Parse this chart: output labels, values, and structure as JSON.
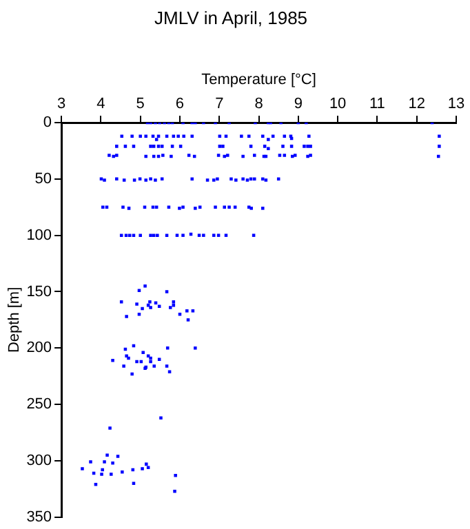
{
  "chart_data": {
    "type": "scatter",
    "title": "JMLV in April, 1985",
    "xlabel": "Temperature [°C]",
    "ylabel": "Depth [m]",
    "xlim": [
      3,
      13
    ],
    "xticks": [
      3,
      4,
      5,
      6,
      7,
      8,
      9,
      10,
      11,
      12,
      13
    ],
    "ylim": [
      350,
      0
    ],
    "yticks": [
      0,
      50,
      100,
      150,
      200,
      250,
      300,
      350
    ],
    "grid": false,
    "legend": false,
    "marker": "square",
    "series": [
      {
        "color": "#0000ff",
        "x": [
          5.18,
          5.26,
          5.38,
          5.49,
          5.61,
          5.72,
          5.81,
          6.08,
          6.31,
          6.39,
          6.6,
          6.9,
          7.25,
          7.91,
          8.24,
          8.3,
          8.56,
          9.0,
          9.2,
          12.39,
          4.53,
          4.79,
          5.0,
          5.14,
          5.32,
          5.41,
          5.46,
          5.67,
          5.84,
          5.96,
          6.1,
          6.31,
          7.01,
          7.17,
          7.56,
          7.75,
          8.1,
          8.24,
          8.36,
          8.65,
          8.81,
          8.83,
          9.27,
          12.57,
          4.4,
          4.62,
          4.83,
          5.26,
          5.34,
          5.46,
          5.55,
          5.81,
          6.02,
          7.01,
          7.09,
          7.8,
          8.15,
          8.24,
          8.61,
          8.83,
          9.15,
          9.24,
          9.31,
          12.57,
          4.21,
          4.32,
          4.4,
          5.14,
          5.34,
          5.46,
          5.57,
          5.78,
          6.23,
          6.37,
          6.98,
          7.13,
          7.21,
          7.6,
          7.89,
          8.13,
          8.18,
          8.53,
          8.65,
          8.85,
          8.92,
          9.24,
          9.31,
          12.55,
          4.01,
          4.09,
          4.4,
          4.59,
          4.85,
          4.99,
          5.14,
          5.26,
          5.38,
          5.55,
          6.31,
          6.7,
          6.86,
          6.95,
          7.3,
          7.42,
          7.6,
          7.71,
          7.8,
          7.89,
          8.1,
          8.18,
          8.5,
          4.05,
          4.15,
          4.56,
          4.71,
          5.11,
          5.32,
          5.41,
          5.72,
          5.99,
          6.08,
          6.39,
          6.51,
          6.9,
          7.13,
          7.25,
          7.4,
          7.75,
          7.81,
          8.1,
          4.52,
          4.64,
          4.73,
          4.83,
          5.0,
          5.26,
          5.34,
          5.43,
          5.67,
          5.93,
          6.08,
          6.28,
          6.49,
          6.6,
          6.86,
          6.98,
          7.17,
          7.87,
          5.12,
          4.97,
          5.67,
          4.52,
          4.91,
          5.24,
          5.39,
          5.84,
          5.2,
          5.05,
          5.26,
          5.48,
          5.76,
          5.84,
          4.65,
          4.97,
          6.0,
          6.18,
          6.33,
          6.21,
          4.83,
          4.62,
          5.69,
          6.39,
          5.07,
          4.65,
          4.7,
          5.2,
          5.26,
          4.3,
          4.91,
          5.02,
          5.26,
          5.48,
          4.58,
          5.35,
          5.14,
          5.12,
          5.67,
          4.79,
          5.74,
          5.52,
          4.23,
          4.16,
          4.43,
          3.74,
          4.09,
          4.3,
          3.53,
          4.04,
          3.82,
          4.02,
          4.26,
          4.54,
          4.81,
          5.05,
          5.15,
          5.2,
          5.89,
          3.87,
          4.83,
          5.87
        ],
        "values": [
          0,
          0,
          0,
          0,
          0,
          0,
          0,
          0,
          0,
          0,
          0,
          0,
          0,
          0,
          0,
          0,
          0,
          0,
          0,
          0,
          12,
          12,
          12,
          12,
          12,
          15,
          12,
          12,
          12,
          12,
          12,
          12,
          12,
          12,
          12,
          12,
          12,
          15,
          12,
          12,
          12,
          14,
          12,
          12,
          21,
          21,
          21,
          21,
          21,
          21,
          21,
          21,
          21,
          21,
          21,
          21,
          21,
          23,
          21,
          21,
          21,
          21,
          21,
          21,
          29,
          30,
          29,
          30,
          30,
          30,
          29,
          30,
          29,
          30,
          29,
          30,
          29,
          30,
          29,
          30,
          30,
          29,
          29,
          30,
          29,
          30,
          29,
          30,
          50,
          51,
          50,
          51,
          51,
          50,
          51,
          50,
          51,
          50,
          50,
          51,
          51,
          50,
          50,
          51,
          50,
          51,
          50,
          50,
          50,
          51,
          50,
          75,
          75,
          75,
          76,
          75,
          75,
          75,
          75,
          76,
          75,
          76,
          75,
          75,
          75,
          75,
          75,
          75,
          76,
          76,
          100,
          100,
          100,
          100,
          100,
          100,
          100,
          100,
          100,
          100,
          100,
          99,
          100,
          100,
          100,
          100,
          100,
          100,
          145,
          149,
          150,
          159,
          161,
          159,
          160,
          159,
          162,
          165,
          164,
          163,
          164,
          162,
          172,
          170,
          170,
          167,
          167,
          175,
          198,
          201,
          200,
          200,
          204,
          207,
          209,
          207,
          209,
          211,
          212,
          212,
          212,
          210,
          216,
          216,
          217,
          218,
          216,
          223,
          221,
          262,
          271,
          295,
          296,
          301,
          301,
          302,
          307,
          308,
          311,
          312,
          312,
          310,
          308,
          307,
          303,
          306,
          313,
          321,
          320,
          327
        ]
      }
    ]
  }
}
